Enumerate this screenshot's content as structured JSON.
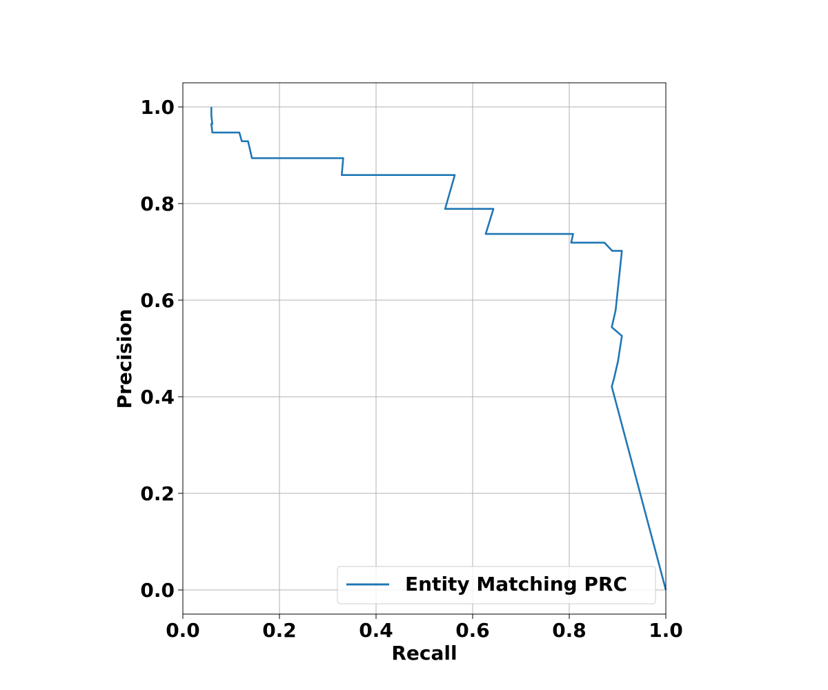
{
  "chart_data": {
    "type": "line",
    "title": "",
    "xlabel": "Recall",
    "ylabel": "Precision",
    "xlim": [
      0.0,
      1.0
    ],
    "ylim": [
      -0.05,
      1.05
    ],
    "x_ticks": [
      0.0,
      0.2,
      0.4,
      0.6,
      0.8,
      1.0
    ],
    "x_tick_labels": [
      "0.0",
      "0.2",
      "0.4",
      "0.6",
      "0.8",
      "1.0"
    ],
    "y_ticks": [
      0.0,
      0.2,
      0.4,
      0.6,
      0.8,
      1.0
    ],
    "y_tick_labels": [
      "0.0",
      "0.2",
      "0.4",
      "0.6",
      "0.8",
      "1.0"
    ],
    "grid": true,
    "legend_position": "lower-right",
    "colors": {
      "series": "#1f77b4",
      "grid": "#b0b0b0"
    },
    "series": [
      {
        "name": "Entity Matching PRC",
        "x": [
          0.059,
          0.059,
          0.061,
          0.059,
          0.061,
          0.117,
          0.122,
          0.135,
          0.143,
          0.332,
          0.329,
          0.563,
          0.543,
          0.643,
          0.627,
          0.808,
          0.804,
          0.873,
          0.889,
          0.909,
          0.896,
          0.888,
          0.909,
          0.901,
          0.893,
          0.888,
          1.0
        ],
        "y": [
          1.0,
          0.982,
          0.965,
          0.965,
          0.947,
          0.947,
          0.929,
          0.929,
          0.894,
          0.894,
          0.859,
          0.859,
          0.789,
          0.789,
          0.737,
          0.737,
          0.719,
          0.719,
          0.702,
          0.702,
          0.579,
          0.544,
          0.526,
          0.474,
          0.439,
          0.421,
          0.0
        ]
      }
    ]
  }
}
